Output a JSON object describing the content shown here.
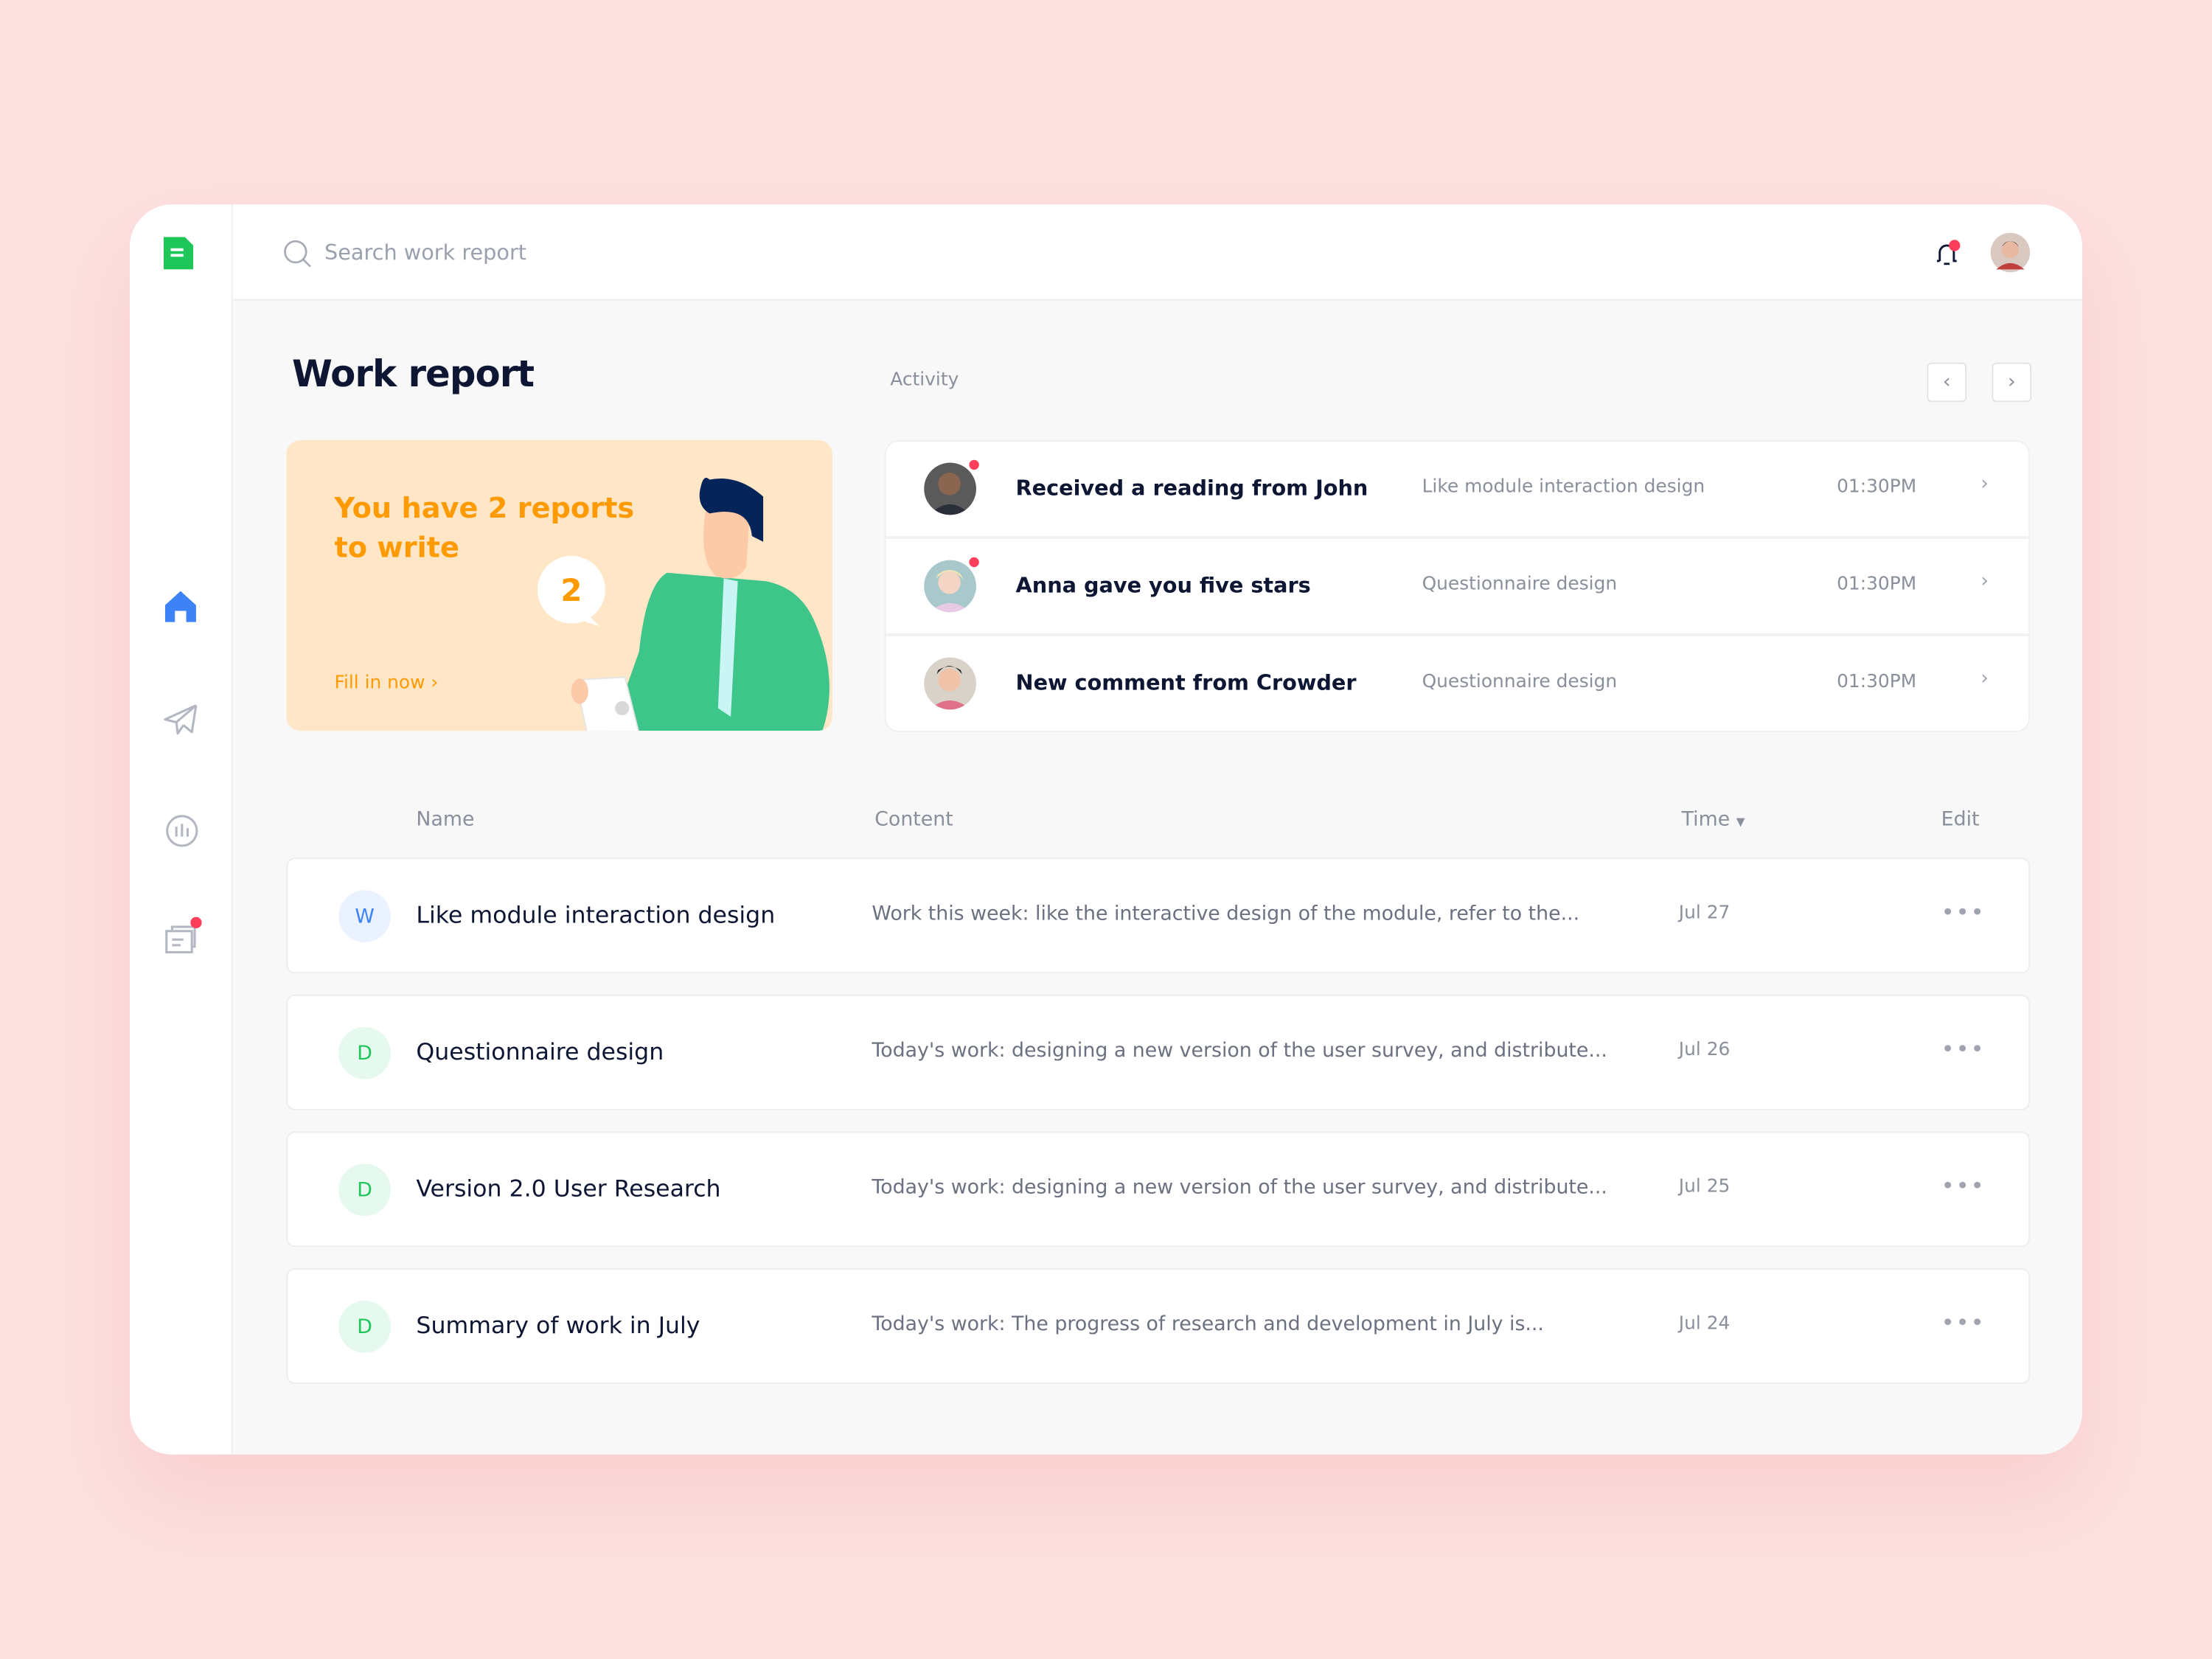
{
  "colors": {
    "brand": "#1ec65a",
    "accent": "#3d82f7",
    "banner": "#ffe6c6",
    "banner_text": "#ff9a00",
    "badge": "#ff3e5b"
  },
  "sidebar": {
    "items": [
      {
        "name": "home",
        "icon": "home-icon",
        "active": true
      },
      {
        "name": "send",
        "icon": "paper-plane-icon"
      },
      {
        "name": "stats",
        "icon": "bar-chart-icon"
      },
      {
        "name": "documents",
        "icon": "documents-icon",
        "badge": true
      }
    ]
  },
  "header": {
    "search_placeholder": "Search work report",
    "notification_badge": true
  },
  "main": {
    "title": "Work report",
    "activity_label": "Activity",
    "banner": {
      "text": "You have 2 reports to write",
      "count": "2",
      "link": "Fill in now"
    },
    "activity": [
      {
        "title": "Received a reading from John",
        "subject": "Like module interaction design",
        "time": "01:30PM",
        "unread": true
      },
      {
        "title": "Anna gave you five stars",
        "subject": "Questionnaire design",
        "time": "01:30PM",
        "unread": true
      },
      {
        "title": "New comment from Crowder",
        "subject": "Questionnaire design",
        "time": "01:30PM",
        "unread": false
      }
    ],
    "table": {
      "headers": {
        "name": "Name",
        "content": "Content",
        "time": "Time",
        "edit": "Edit"
      },
      "rows": [
        {
          "initial": "W",
          "name": "Like module interaction design",
          "content": "Work this week: like the interactive design of the module, refer to the...",
          "date": "Jul 27"
        },
        {
          "initial": "D",
          "name": "Questionnaire design",
          "content": "Today's work: designing a new version of the user survey, and distribute...",
          "date": "Jul 26"
        },
        {
          "initial": "D",
          "name": "Version 2.0 User Research",
          "content": "Today's work: designing a new version of the user survey, and distribute...",
          "date": "Jul 25"
        },
        {
          "initial": "D",
          "name": "Summary of work in July",
          "content": "Today's work: The progress of research and development in July is...",
          "date": "Jul 24"
        }
      ]
    }
  }
}
